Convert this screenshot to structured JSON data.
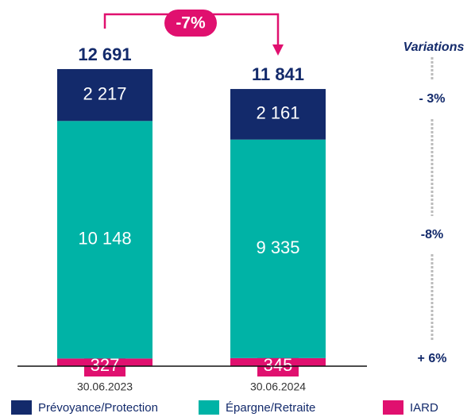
{
  "chart_data": {
    "type": "stacked_bar",
    "categories": [
      "30.06.2023",
      "30.06.2024"
    ],
    "series": [
      {
        "name": "Prévoyance/Protection",
        "color": "#132a6b",
        "values": [
          2217,
          2161
        ],
        "value_labels": [
          "2 217",
          "2 161"
        ]
      },
      {
        "name": "Épargne/Retraite",
        "color": "#00b3a6",
        "values": [
          10148,
          9335
        ],
        "value_labels": [
          "10 148",
          "9 335"
        ]
      },
      {
        "name": "IARD",
        "color": "#e0106f",
        "values": [
          327,
          345
        ],
        "value_labels": [
          "327",
          "345"
        ]
      }
    ],
    "totals": [
      12691,
      11841
    ],
    "total_labels": [
      "12 691",
      "11 841"
    ],
    "change_annotation": "-7%",
    "variations_title": "Variations",
    "variation_labels": [
      "- 3%",
      "-8%",
      "+ 6%"
    ]
  }
}
